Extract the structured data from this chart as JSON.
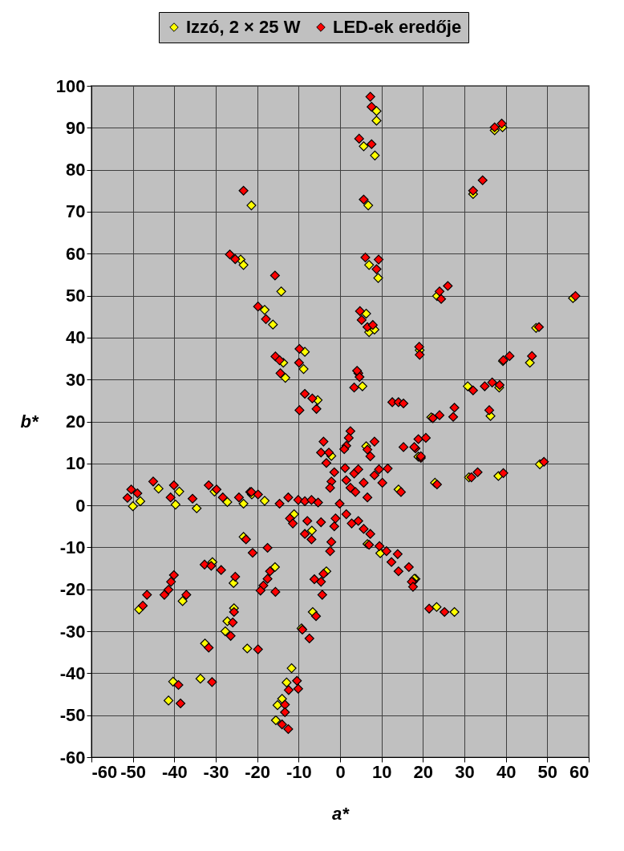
{
  "chart_data": {
    "type": "scatter",
    "xlabel": "a*",
    "ylabel": "b*",
    "xlim": [
      -60,
      60
    ],
    "ylim": [
      -60,
      100
    ],
    "xticks": [
      -60,
      -50,
      -40,
      -30,
      -20,
      -10,
      0,
      10,
      20,
      30,
      40,
      50,
      60
    ],
    "yticks": [
      -60,
      -50,
      -40,
      -30,
      -20,
      -10,
      0,
      10,
      20,
      30,
      40,
      50,
      60,
      70,
      80,
      90,
      100
    ],
    "grid": true,
    "legend": "top",
    "marker": "diamond",
    "series": [
      {
        "name": "Izzó, 2 × 25 W",
        "color": "#ffff00",
        "x": [
          8.8,
          8.8,
          5.7,
          8.4,
          6.8,
          7.0,
          9.2,
          6.3,
          7.0,
          8.3,
          -21.4,
          -14.2,
          -18.2,
          -16.2,
          -13.7,
          -13.2,
          -8.5,
          -8.8,
          -5.4,
          5.4,
          -24.0,
          -23.3,
          37.3,
          39.2,
          32.1,
          23.4,
          56.2,
          47.3,
          39.3,
          45.8,
          30.8,
          38.4,
          36.3,
          22.0,
          18.9,
          22.9,
          31.1,
          38.2,
          48.2,
          23.3,
          27.6,
          18.2,
          -50.0,
          -48.2,
          -43.8,
          -38.8,
          -39.7,
          -34.6,
          -30.3,
          -27.2,
          -23.3,
          -21.3,
          -30.8,
          -25.7,
          -38.0,
          -48.5,
          -25.6,
          -27.2,
          -27.7,
          -32.6,
          -22.4,
          -40.3,
          -41.4,
          -33.7,
          -15.7,
          -3.3,
          -6.6,
          -9.3,
          -11.7,
          -12.9,
          -14.0,
          -15.1,
          -15.5,
          -18.2,
          -23.3,
          -11.1,
          -6.8,
          6.6,
          9.7,
          17.9,
          6.3,
          -2.1,
          14.1,
          19.2
        ],
        "values": [
          94.0,
          91.7,
          85.6,
          83.4,
          71.5,
          57.3,
          54.2,
          45.7,
          41.3,
          41.9,
          71.5,
          51.0,
          46.6,
          43.1,
          34.0,
          30.4,
          36.6,
          32.5,
          25.1,
          28.4,
          58.6,
          57.3,
          89.4,
          90.1,
          74.2,
          49.9,
          49.4,
          42.3,
          34.4,
          34.0,
          28.4,
          28.1,
          21.3,
          21.0,
          11.6,
          5.4,
          6.7,
          7.0,
          9.8,
          -24.2,
          -25.4,
          -17.5,
          -0.2,
          1.0,
          4.0,
          3.3,
          0.2,
          -0.7,
          3.3,
          0.8,
          0.4,
          2.6,
          -13.5,
          -18.5,
          -22.8,
          -24.8,
          -24.5,
          -27.6,
          -30.0,
          -32.9,
          -34.1,
          -42.0,
          -46.5,
          -41.3,
          -14.7,
          -15.7,
          -25.4,
          -29.3,
          -38.8,
          -42.2,
          -46.1,
          -47.6,
          -51.2,
          1.1,
          -7.5,
          -2.1,
          -6.0,
          -9.2,
          -11.4,
          -17.5,
          14.1,
          11.8,
          3.8,
          37.0
        ]
      },
      {
        "name": "LED-ek eredője",
        "color": "#ff0000",
        "x": [
          7.3,
          7.6,
          4.6,
          7.6,
          5.7,
          6.1,
          9.3,
          8.8,
          4.8,
          5.2,
          6.6,
          7.9,
          -23.3,
          -15.7,
          -19.8,
          -17.9,
          -15.6,
          -14.6,
          -14.4,
          -9.8,
          -9.9,
          -8.5,
          -6.7,
          -9.8,
          -5.7,
          4.4,
          4.7,
          3.4,
          4.1,
          19.1,
          19.2,
          12.6,
          14.1,
          15.3,
          -26.6,
          -25.3,
          37.3,
          39.0,
          34.4,
          32.1,
          26.0,
          24.0,
          24.4,
          56.8,
          48.0,
          40.9,
          39.4,
          46.3,
          32.1,
          34.9,
          36.7,
          38.5,
          36.0,
          24.0,
          27.6,
          27.3,
          22.4,
          18.9,
          20.7,
          18.2,
          19.5,
          23.4,
          31.7,
          33.2,
          39.4,
          49.2,
          21.5,
          25.2,
          17.6,
          -50.4,
          -48.9,
          -51.3,
          -45.1,
          -40.1,
          -40.9,
          -35.6,
          -31.7,
          -29.8,
          -28.3,
          -24.4,
          -21.7,
          -32.7,
          -31.1,
          -28.7,
          -25.3,
          -40.1,
          -40.8,
          -41.4,
          -42.4,
          -37.1,
          -46.6,
          -47.6,
          -25.6,
          -25.9,
          -26.4,
          -31.7,
          -39.0,
          -38.5,
          -30.9,
          -19.8,
          -16.9,
          -17.5,
          -18.5,
          -15.6,
          -19.2,
          -4.0,
          -4.6,
          -4.3,
          -6.2,
          -5.8,
          -9.1,
          -7.4,
          -10.4,
          -12.4,
          -10.1,
          -13.3,
          -13.3,
          -14.0,
          -12.5,
          -21.4,
          -19.8,
          -14.6,
          -12.5,
          -10.1,
          -8.5,
          -6.9,
          -22.7,
          -21.1,
          -17.5,
          -12.1,
          -11.4,
          -7.9,
          -4.6,
          -8.5,
          -6.9,
          -2.1,
          -2.4,
          -1.4,
          -1.1,
          -5.3,
          -0.1,
          1.5,
          2.8,
          4.4,
          5.7,
          7.3,
          7.0,
          9.5,
          11.2,
          12.4,
          13.9,
          14.1,
          16.6,
          17.3,
          17.6,
          2.5,
          2.1,
          1.5,
          1.0,
          8.3,
          6.6,
          7.3,
          -4.0,
          -4.6,
          -2.7,
          -3.3,
          -1.4,
          -2.1,
          -2.4,
          1.2,
          3.4,
          4.4,
          5.7,
          3.7,
          6.6,
          8.3,
          10.2,
          11.5,
          9.4,
          1.5,
          2.5,
          14.7,
          15.3,
          17.9,
          19.5
        ],
        "values": [
          97.4,
          95.0,
          87.4,
          86.1,
          72.9,
          59.1,
          58.6,
          56.3,
          46.3,
          44.2,
          42.5,
          43.0,
          75.0,
          54.8,
          47.4,
          44.4,
          35.5,
          34.6,
          31.5,
          37.3,
          34.0,
          26.6,
          25.5,
          22.7,
          23.0,
          31.5,
          30.6,
          28.1,
          32.1,
          37.8,
          35.9,
          24.6,
          24.6,
          24.3,
          59.8,
          58.7,
          90.1,
          91.0,
          77.5,
          75.0,
          52.3,
          51.0,
          49.2,
          49.9,
          42.5,
          35.6,
          34.6,
          35.6,
          27.4,
          28.4,
          29.3,
          28.7,
          22.7,
          21.5,
          23.3,
          21.1,
          20.8,
          15.8,
          16.1,
          13.6,
          11.3,
          5.0,
          6.7,
          7.9,
          7.7,
          10.4,
          -24.6,
          -25.4,
          -18.2,
          3.8,
          2.9,
          1.8,
          5.7,
          4.8,
          1.9,
          1.6,
          4.8,
          3.8,
          1.9,
          1.9,
          3.2,
          -14.1,
          -14.4,
          -15.4,
          -17.0,
          -16.6,
          -18.2,
          -20.1,
          -21.3,
          -21.3,
          -21.3,
          -23.9,
          -25.4,
          -27.9,
          -31.1,
          -33.9,
          -42.8,
          -47.2,
          -42.1,
          -34.3,
          -15.7,
          -17.5,
          -19.1,
          -20.6,
          -20.3,
          -16.3,
          -18.2,
          -21.3,
          -17.6,
          -26.4,
          -29.6,
          -31.7,
          -41.8,
          -44.0,
          -43.7,
          -47.5,
          -49.3,
          -52.2,
          -53.3,
          3.2,
          2.6,
          0.4,
          1.9,
          1.3,
          1.0,
          1.3,
          -8.1,
          -11.3,
          -10.1,
          -3.1,
          -4.3,
          -3.7,
          -4.0,
          -6.8,
          -8.1,
          -8.7,
          -10.9,
          -5.0,
          -3.1,
          0.7,
          0.4,
          -2.1,
          -4.3,
          -3.7,
          -5.6,
          -6.8,
          -9.4,
          -9.7,
          -10.9,
          -13.5,
          -11.6,
          -15.7,
          -14.7,
          -18.2,
          -19.4,
          17.7,
          16.1,
          14.2,
          13.4,
          15.2,
          13.3,
          11.7,
          15.2,
          12.6,
          12.6,
          10.1,
          7.9,
          5.7,
          4.2,
          8.9,
          7.6,
          8.6,
          5.4,
          3.2,
          1.9,
          7.2,
          5.4,
          8.8,
          8.6,
          6.0,
          4.2,
          3.2,
          13.9,
          13.9,
          11.7
        ]
      }
    ]
  }
}
